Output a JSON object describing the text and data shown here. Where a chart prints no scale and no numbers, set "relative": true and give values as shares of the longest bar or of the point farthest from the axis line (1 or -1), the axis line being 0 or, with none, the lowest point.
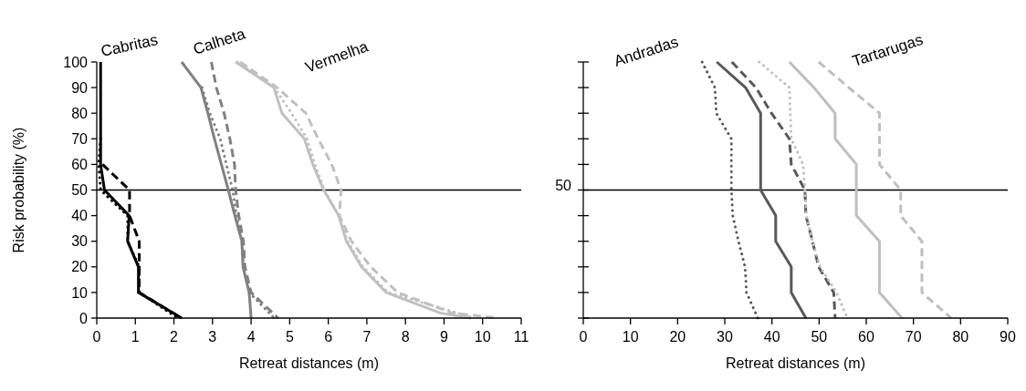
{
  "chart_data": [
    {
      "type": "line",
      "xlabel": "Retreat distances (m)",
      "ylabel": "Risk probability (%)",
      "xlim": [
        0,
        11
      ],
      "xticks": [
        0,
        1,
        2,
        3,
        4,
        5,
        6,
        7,
        8,
        9,
        10,
        11
      ],
      "ylim": [
        0,
        100
      ],
      "yticks": [
        0,
        10,
        20,
        30,
        40,
        50,
        60,
        70,
        80,
        90,
        100
      ],
      "grid": false,
      "marker": "none",
      "ref_lines": [
        {
          "axis": "y",
          "value": 50,
          "color": "#000000"
        }
      ],
      "annotations": [
        "Cabritas",
        "Calheta",
        "Vermelha"
      ],
      "series": [
        {
          "color": "#000000",
          "line_style": "solid",
          "x": [
            0.1,
            0.1,
            0.1,
            0.1,
            0.1,
            0.2,
            0.84,
            0.8,
            1.08,
            1.08,
            2.2
          ],
          "values": [
            100,
            90,
            80,
            70,
            60,
            50,
            40,
            30,
            20,
            10,
            0
          ]
        },
        {
          "color": "#000000",
          "line_style": "dashed",
          "x": [
            0.15,
            0.85,
            0.85,
            1.1,
            1.1,
            1.1,
            2.2
          ],
          "values": [
            60,
            50,
            40,
            30,
            20,
            10,
            0
          ]
        },
        {
          "color": "#000000",
          "line_style": "dotted",
          "x": [
            0.1,
            0.05,
            0.1,
            0.8,
            0.8,
            1.1,
            1.1,
            2.1
          ],
          "values": [
            70,
            60,
            50,
            40,
            30,
            20,
            10,
            0
          ]
        },
        {
          "color": "#808080",
          "line_style": "solid",
          "x": [
            2.2,
            2.7,
            2.88,
            3.05,
            3.23,
            3.41,
            3.58,
            3.76,
            3.79,
            3.95,
            4.0
          ],
          "values": [
            100,
            90,
            80,
            70,
            60,
            50,
            40,
            30,
            20,
            10,
            0
          ]
        },
        {
          "color": "#808080",
          "line_style": "dashed",
          "x": [
            2.97,
            3.1,
            3.3,
            3.45,
            3.57,
            3.6,
            3.68,
            3.8,
            3.84,
            4.0,
            4.7
          ],
          "values": [
            100,
            90,
            80,
            70,
            60,
            50,
            40,
            30,
            20,
            10,
            0
          ]
        },
        {
          "color": "#808080",
          "line_style": "dotted",
          "x": [
            2.73,
            2.93,
            3.2,
            3.36,
            3.52,
            3.62,
            3.76,
            3.8,
            3.95,
            4.6
          ],
          "values": [
            90,
            80,
            70,
            60,
            50,
            40,
            30,
            20,
            10,
            0
          ]
        },
        {
          "color": "#c0c0c0",
          "line_style": "solid",
          "x": [
            3.6,
            4.59,
            4.8,
            5.38,
            5.6,
            5.88,
            6.27,
            6.47,
            6.86,
            7.5,
            8.9,
            9.7
          ],
          "values": [
            100,
            90,
            80,
            70,
            60,
            50,
            40,
            30,
            20,
            10,
            2,
            0
          ]
        },
        {
          "color": "#c0c0c0",
          "line_style": "dashed",
          "x": [
            3.72,
            4.67,
            5.42,
            5.74,
            6.09,
            6.33,
            6.29,
            6.6,
            7.1,
            7.8,
            9.2,
            10.4
          ],
          "values": [
            100,
            90,
            80,
            70,
            60,
            50,
            40,
            30,
            20,
            10,
            2,
            0
          ]
        },
        {
          "color": "#c0c0c0",
          "line_style": "dotted",
          "x": [
            3.65,
            4.6,
            5.05,
            5.45,
            5.65,
            5.9,
            6.27,
            6.5,
            6.9,
            7.55,
            9.8
          ],
          "values": [
            100,
            90,
            80,
            70,
            60,
            50,
            40,
            30,
            20,
            10,
            0
          ]
        }
      ]
    },
    {
      "type": "line",
      "relative": true,
      "xlabel": "Retreat distances (m)",
      "xlim": [
        0,
        90
      ],
      "xticks": [
        0,
        10,
        20,
        30,
        40,
        50,
        60,
        70,
        80,
        90
      ],
      "grid": false,
      "marker": "none",
      "ref_lines": [
        {
          "axis": "y",
          "value": 0.5,
          "color": "#000000"
        }
      ],
      "annotations": [
        "50",
        "Andradas",
        "Tartarugas"
      ],
      "series": [
        {
          "color": "#595959",
          "line_style": "dotted",
          "x": [
            25.2,
            27.9,
            28.2,
            31.4,
            31.4,
            31.4,
            31.7,
            32.9,
            34.3,
            34.6,
            37
          ],
          "values": [
            1,
            0.9,
            0.8,
            0.7,
            0.6,
            0.5,
            0.4,
            0.3,
            0.2,
            0.1,
            0
          ]
        },
        {
          "color": "#595959",
          "line_style": "solid",
          "x": [
            28.3,
            34.4,
            37.6,
            37.6,
            37.6,
            37.6,
            40.8,
            40.8,
            44.1,
            44.1,
            47.2
          ],
          "values": [
            1,
            0.9,
            0.8,
            0.7,
            0.6,
            0.5,
            0.4,
            0.3,
            0.2,
            0.1,
            0
          ]
        },
        {
          "color": "#595959",
          "line_style": "dashed",
          "x": [
            31.5,
            36.6,
            39.9,
            43.7,
            44.1,
            47.0,
            47.2,
            48.6,
            49.9,
            53.1,
            53.4
          ],
          "values": [
            1,
            0.9,
            0.8,
            0.7,
            0.6,
            0.5,
            0.4,
            0.3,
            0.2,
            0.1,
            0
          ]
        },
        {
          "color": "#bfbfbf",
          "line_style": "dotted",
          "x": [
            37.3,
            43.7,
            43.9,
            44.1,
            46.6,
            47.0,
            47.3,
            48.6,
            50.2,
            53.7,
            56
          ],
          "values": [
            1,
            0.9,
            0.8,
            0.7,
            0.6,
            0.5,
            0.4,
            0.3,
            0.2,
            0.1,
            0
          ]
        },
        {
          "color": "#bfbfbf",
          "line_style": "solid",
          "x": [
            43.7,
            48.9,
            53.4,
            53.4,
            57.9,
            57.9,
            57.9,
            62.8,
            62.8,
            62.8,
            67.6
          ],
          "values": [
            1,
            0.9,
            0.8,
            0.7,
            0.6,
            0.5,
            0.4,
            0.3,
            0.2,
            0.1,
            0
          ]
        },
        {
          "color": "#bfbfbf",
          "line_style": "dashed",
          "x": [
            49.9,
            56.3,
            62.8,
            62.8,
            62.8,
            67.3,
            67.3,
            71.8,
            71.8,
            71.8,
            78
          ],
          "values": [
            1,
            0.9,
            0.8,
            0.7,
            0.6,
            0.5,
            0.4,
            0.3,
            0.2,
            0.1,
            0
          ]
        }
      ]
    }
  ]
}
